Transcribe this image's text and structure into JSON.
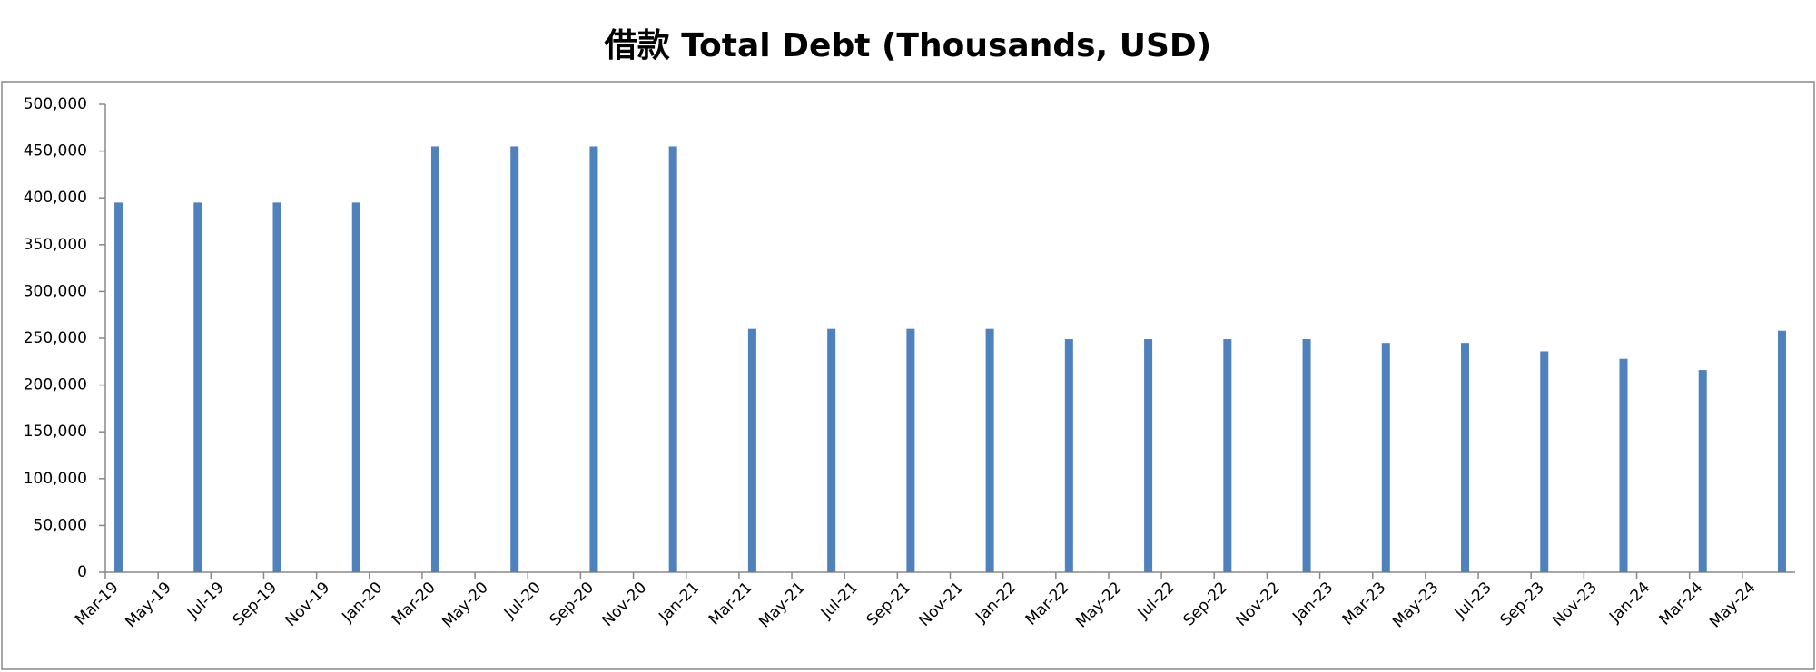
{
  "chart_data": {
    "type": "bar",
    "title": "借款 Total Debt (Thousands, USD)",
    "categories": [
      "Mar-19",
      null,
      "May-19",
      null,
      "Jul-19",
      null,
      "Sep-19",
      null,
      "Nov-19",
      null,
      "Jan-20",
      null,
      "Mar-20",
      null,
      "May-20",
      null,
      "Jul-20",
      null,
      "Sep-20",
      null,
      "Nov-20",
      null,
      "Jan-21",
      null,
      "Mar-21",
      null,
      "May-21",
      null,
      "Jul-21",
      null,
      "Sep-21",
      null,
      "Nov-21",
      null,
      "Jan-22",
      null,
      "Mar-22",
      null,
      "May-22",
      null,
      "Jul-22",
      null,
      "Sep-22",
      null,
      "Nov-22",
      null,
      "Jan-23",
      null,
      "Mar-23",
      null,
      "May-23",
      null,
      "Jul-23",
      null,
      "Sep-23",
      null,
      "Nov-23",
      null,
      "Jan-24",
      null,
      "Mar-24",
      null,
      "May-24",
      null
    ],
    "values": [
      395000,
      null,
      null,
      395000,
      null,
      null,
      395000,
      null,
      null,
      395000,
      null,
      null,
      455000,
      null,
      null,
      455000,
      null,
      null,
      455000,
      null,
      null,
      455000,
      null,
      null,
      260000,
      null,
      null,
      260000,
      null,
      null,
      260000,
      null,
      null,
      260000,
      null,
      null,
      249000,
      null,
      null,
      249000,
      null,
      null,
      249000,
      null,
      null,
      249000,
      null,
      null,
      245000,
      null,
      null,
      245000,
      null,
      null,
      236000,
      null,
      null,
      228000,
      null,
      null,
      216000,
      null,
      null,
      258000
    ],
    "color": "#4f81bd",
    "ylim": [
      0,
      500000
    ],
    "yticks": [
      0,
      {
        "value": 50000,
        "label": "50,000"
      },
      {
        "value": 100000,
        "label": "100,000"
      },
      {
        "value": 150000,
        "label": "150,000"
      },
      {
        "value": 200000,
        "label": "200,000"
      },
      {
        "value": 250000,
        "label": "250,000"
      },
      {
        "value": 300000,
        "label": "300,000"
      },
      {
        "value": 350000,
        "label": "350,000"
      },
      {
        "value": 400000,
        "label": "400,000"
      },
      {
        "value": 450000,
        "label": "450,000"
      },
      {
        "value": 500000,
        "label": "500,000"
      }
    ],
    "grid": false
  }
}
